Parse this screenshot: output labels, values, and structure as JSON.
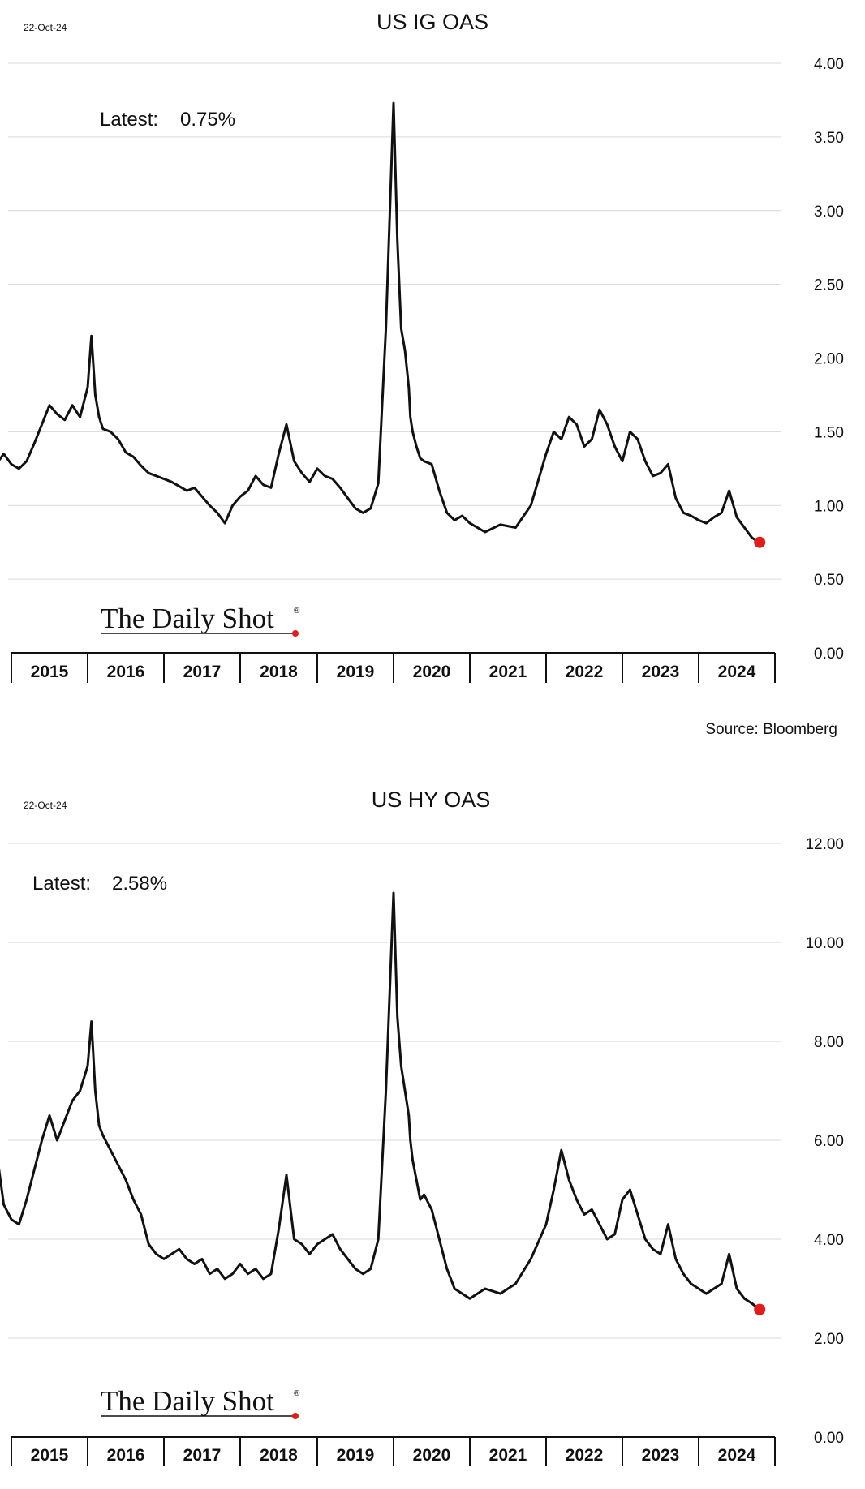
{
  "charts": [
    {
      "date_stamp": "22-Oct-24",
      "latest_label": "Latest:",
      "latest_value": "0.75%",
      "brand": "The Daily Shot",
      "brand_mark": "®"
    },
    {
      "date_stamp": "22-Oct-24",
      "latest_label": "Latest:",
      "latest_value": "2.58%",
      "brand": "The Daily Shot",
      "brand_mark": "®"
    }
  ],
  "source": "Source: Bloomberg",
  "colors": {
    "line": "#111111",
    "latest_marker": "#e31b1b",
    "grid": "#d9d9d9"
  },
  "chart_data": [
    {
      "type": "line",
      "title": "US IG OAS",
      "xlabel": "",
      "ylabel": "",
      "x_tick_labels": [
        "2015",
        "2016",
        "2017",
        "2018",
        "2019",
        "2020",
        "2021",
        "2022",
        "2023",
        "2024"
      ],
      "xlim": [
        2015.0,
        2025.0
      ],
      "ylim": [
        0,
        4.0
      ],
      "y_tick_labels": [
        "4.00",
        "3.50",
        "3.00",
        "2.50",
        "2.00",
        "1.50",
        "1.00",
        "0.50",
        "0.00"
      ],
      "y_tick_values": [
        4.0,
        3.5,
        3.0,
        2.5,
        2.0,
        1.5,
        1.0,
        0.5,
        0.0
      ],
      "grid": true,
      "y_axis_side": "right",
      "series": [
        {
          "x": [
            2014.83,
            2014.9,
            2015.0,
            2015.1,
            2015.2,
            2015.3,
            2015.4,
            2015.5,
            2015.6,
            2015.7,
            2015.8,
            2015.9,
            2016.0,
            2016.05,
            2016.1,
            2016.15,
            2016.2,
            2016.3,
            2016.4,
            2016.5,
            2016.6,
            2016.7,
            2016.8,
            2016.9,
            2017.0,
            2017.1,
            2017.2,
            2017.3,
            2017.4,
            2017.5,
            2017.6,
            2017.7,
            2017.8,
            2017.9,
            2018.0,
            2018.1,
            2018.2,
            2018.3,
            2018.4,
            2018.5,
            2018.6,
            2018.7,
            2018.8,
            2018.9,
            2019.0,
            2019.1,
            2019.2,
            2019.3,
            2019.4,
            2019.5,
            2019.6,
            2019.7,
            2019.8,
            2019.9,
            2020.0,
            2020.05,
            2020.1,
            2020.15,
            2020.2,
            2020.22,
            2020.25,
            2020.3,
            2020.35,
            2020.4,
            2020.5,
            2020.6,
            2020.7,
            2020.8,
            2020.9,
            2021.0,
            2021.2,
            2021.4,
            2021.6,
            2021.8,
            2022.0,
            2022.1,
            2022.2,
            2022.3,
            2022.4,
            2022.5,
            2022.6,
            2022.7,
            2022.8,
            2022.9,
            2023.0,
            2023.1,
            2023.2,
            2023.3,
            2023.4,
            2023.5,
            2023.6,
            2023.7,
            2023.8,
            2023.9,
            2024.0,
            2024.1,
            2024.2,
            2024.3,
            2024.4,
            2024.5,
            2024.6,
            2024.7,
            2024.8
          ],
          "y": [
            1.3,
            1.35,
            1.28,
            1.25,
            1.3,
            1.42,
            1.55,
            1.68,
            1.62,
            1.58,
            1.68,
            1.6,
            1.8,
            2.15,
            1.75,
            1.6,
            1.52,
            1.5,
            1.45,
            1.36,
            1.33,
            1.27,
            1.22,
            1.2,
            1.18,
            1.16,
            1.13,
            1.1,
            1.12,
            1.06,
            1.0,
            0.95,
            0.88,
            1.0,
            1.06,
            1.1,
            1.2,
            1.14,
            1.12,
            1.35,
            1.55,
            1.3,
            1.22,
            1.16,
            1.25,
            1.2,
            1.18,
            1.12,
            1.05,
            0.98,
            0.95,
            0.98,
            1.15,
            2.2,
            3.73,
            2.8,
            2.2,
            2.05,
            1.8,
            1.6,
            1.5,
            1.4,
            1.32,
            1.3,
            1.28,
            1.1,
            0.95,
            0.9,
            0.93,
            0.88,
            0.82,
            0.87,
            0.85,
            1.0,
            1.35,
            1.5,
            1.45,
            1.6,
            1.55,
            1.4,
            1.45,
            1.65,
            1.55,
            1.4,
            1.3,
            1.5,
            1.45,
            1.3,
            1.2,
            1.22,
            1.28,
            1.05,
            0.95,
            0.93,
            0.9,
            0.88,
            0.92,
            0.95,
            1.1,
            0.92,
            0.85,
            0.78,
            0.75
          ]
        }
      ]
    },
    {
      "type": "line",
      "title": "US HY OAS",
      "xlabel": "",
      "ylabel": "",
      "x_tick_labels": [
        "2015",
        "2016",
        "2017",
        "2018",
        "2019",
        "2020",
        "2021",
        "2022",
        "2023",
        "2024"
      ],
      "xlim": [
        2015.0,
        2025.0
      ],
      "ylim": [
        0,
        12.0
      ],
      "y_tick_labels": [
        "12.00",
        "10.00",
        "8.00",
        "6.00",
        "4.00",
        "2.00",
        "0.00"
      ],
      "y_tick_values": [
        12.0,
        10.0,
        8.0,
        6.0,
        4.0,
        2.0,
        0.0
      ],
      "grid": true,
      "y_axis_side": "right",
      "series": [
        {
          "x": [
            2014.83,
            2014.9,
            2015.0,
            2015.1,
            2015.2,
            2015.3,
            2015.4,
            2015.5,
            2015.6,
            2015.7,
            2015.8,
            2015.9,
            2016.0,
            2016.05,
            2016.1,
            2016.15,
            2016.2,
            2016.3,
            2016.4,
            2016.5,
            2016.6,
            2016.7,
            2016.8,
            2016.9,
            2017.0,
            2017.1,
            2017.2,
            2017.3,
            2017.4,
            2017.5,
            2017.6,
            2017.7,
            2017.8,
            2017.9,
            2018.0,
            2018.1,
            2018.2,
            2018.3,
            2018.4,
            2018.5,
            2018.6,
            2018.7,
            2018.8,
            2018.9,
            2019.0,
            2019.1,
            2019.2,
            2019.3,
            2019.4,
            2019.5,
            2019.6,
            2019.7,
            2019.8,
            2019.9,
            2020.0,
            2020.05,
            2020.1,
            2020.15,
            2020.2,
            2020.22,
            2020.25,
            2020.3,
            2020.35,
            2020.4,
            2020.5,
            2020.6,
            2020.7,
            2020.8,
            2020.9,
            2021.0,
            2021.2,
            2021.4,
            2021.6,
            2021.8,
            2022.0,
            2022.1,
            2022.2,
            2022.3,
            2022.4,
            2022.5,
            2022.6,
            2022.7,
            2022.8,
            2022.9,
            2023.0,
            2023.1,
            2023.2,
            2023.3,
            2023.4,
            2023.5,
            2023.6,
            2023.7,
            2023.8,
            2023.9,
            2024.0,
            2024.1,
            2024.2,
            2024.3,
            2024.4,
            2024.5,
            2024.6,
            2024.7,
            2024.8
          ],
          "y": [
            5.5,
            4.7,
            4.4,
            4.3,
            4.8,
            5.4,
            6.0,
            6.5,
            6.0,
            6.4,
            6.8,
            7.0,
            7.5,
            8.4,
            7.0,
            6.3,
            6.1,
            5.8,
            5.5,
            5.2,
            4.8,
            4.5,
            3.9,
            3.7,
            3.6,
            3.7,
            3.8,
            3.6,
            3.5,
            3.6,
            3.3,
            3.4,
            3.2,
            3.3,
            3.5,
            3.3,
            3.4,
            3.2,
            3.3,
            4.2,
            5.3,
            4.0,
            3.9,
            3.7,
            3.9,
            4.0,
            4.1,
            3.8,
            3.6,
            3.4,
            3.3,
            3.4,
            4.0,
            7.0,
            11.0,
            8.5,
            7.5,
            7.0,
            6.5,
            6.0,
            5.6,
            5.2,
            4.8,
            4.9,
            4.6,
            4.0,
            3.4,
            3.0,
            2.9,
            2.8,
            3.0,
            2.9,
            3.1,
            3.6,
            4.3,
            5.0,
            5.8,
            5.2,
            4.8,
            4.5,
            4.6,
            4.3,
            4.0,
            4.1,
            4.8,
            5.0,
            4.5,
            4.0,
            3.8,
            3.7,
            4.3,
            3.6,
            3.3,
            3.1,
            3.0,
            2.9,
            3.0,
            3.1,
            3.7,
            3.0,
            2.8,
            2.7,
            2.58
          ]
        }
      ]
    }
  ]
}
